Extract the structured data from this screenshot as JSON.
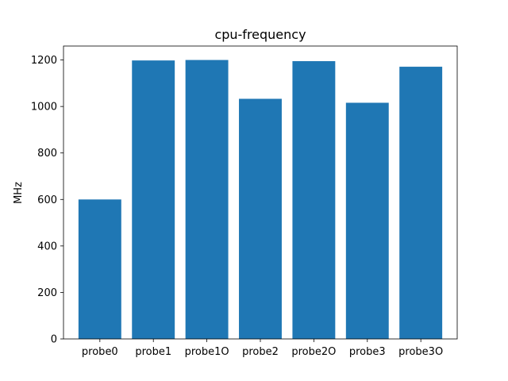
{
  "chart_data": {
    "type": "bar",
    "title": "cpu-frequency",
    "xlabel": "",
    "ylabel": "MHz",
    "categories": [
      "probe0",
      "probe1",
      "probe1O",
      "probe2",
      "probe2O",
      "probe3",
      "probe3O"
    ],
    "values": [
      600,
      1198,
      1200,
      1033,
      1195,
      1016,
      1171
    ],
    "ylim": [
      0,
      1260
    ],
    "yticks": [
      0,
      200,
      400,
      600,
      800,
      1000,
      1200
    ],
    "bar_color": "#1f77b4",
    "grid": false
  }
}
